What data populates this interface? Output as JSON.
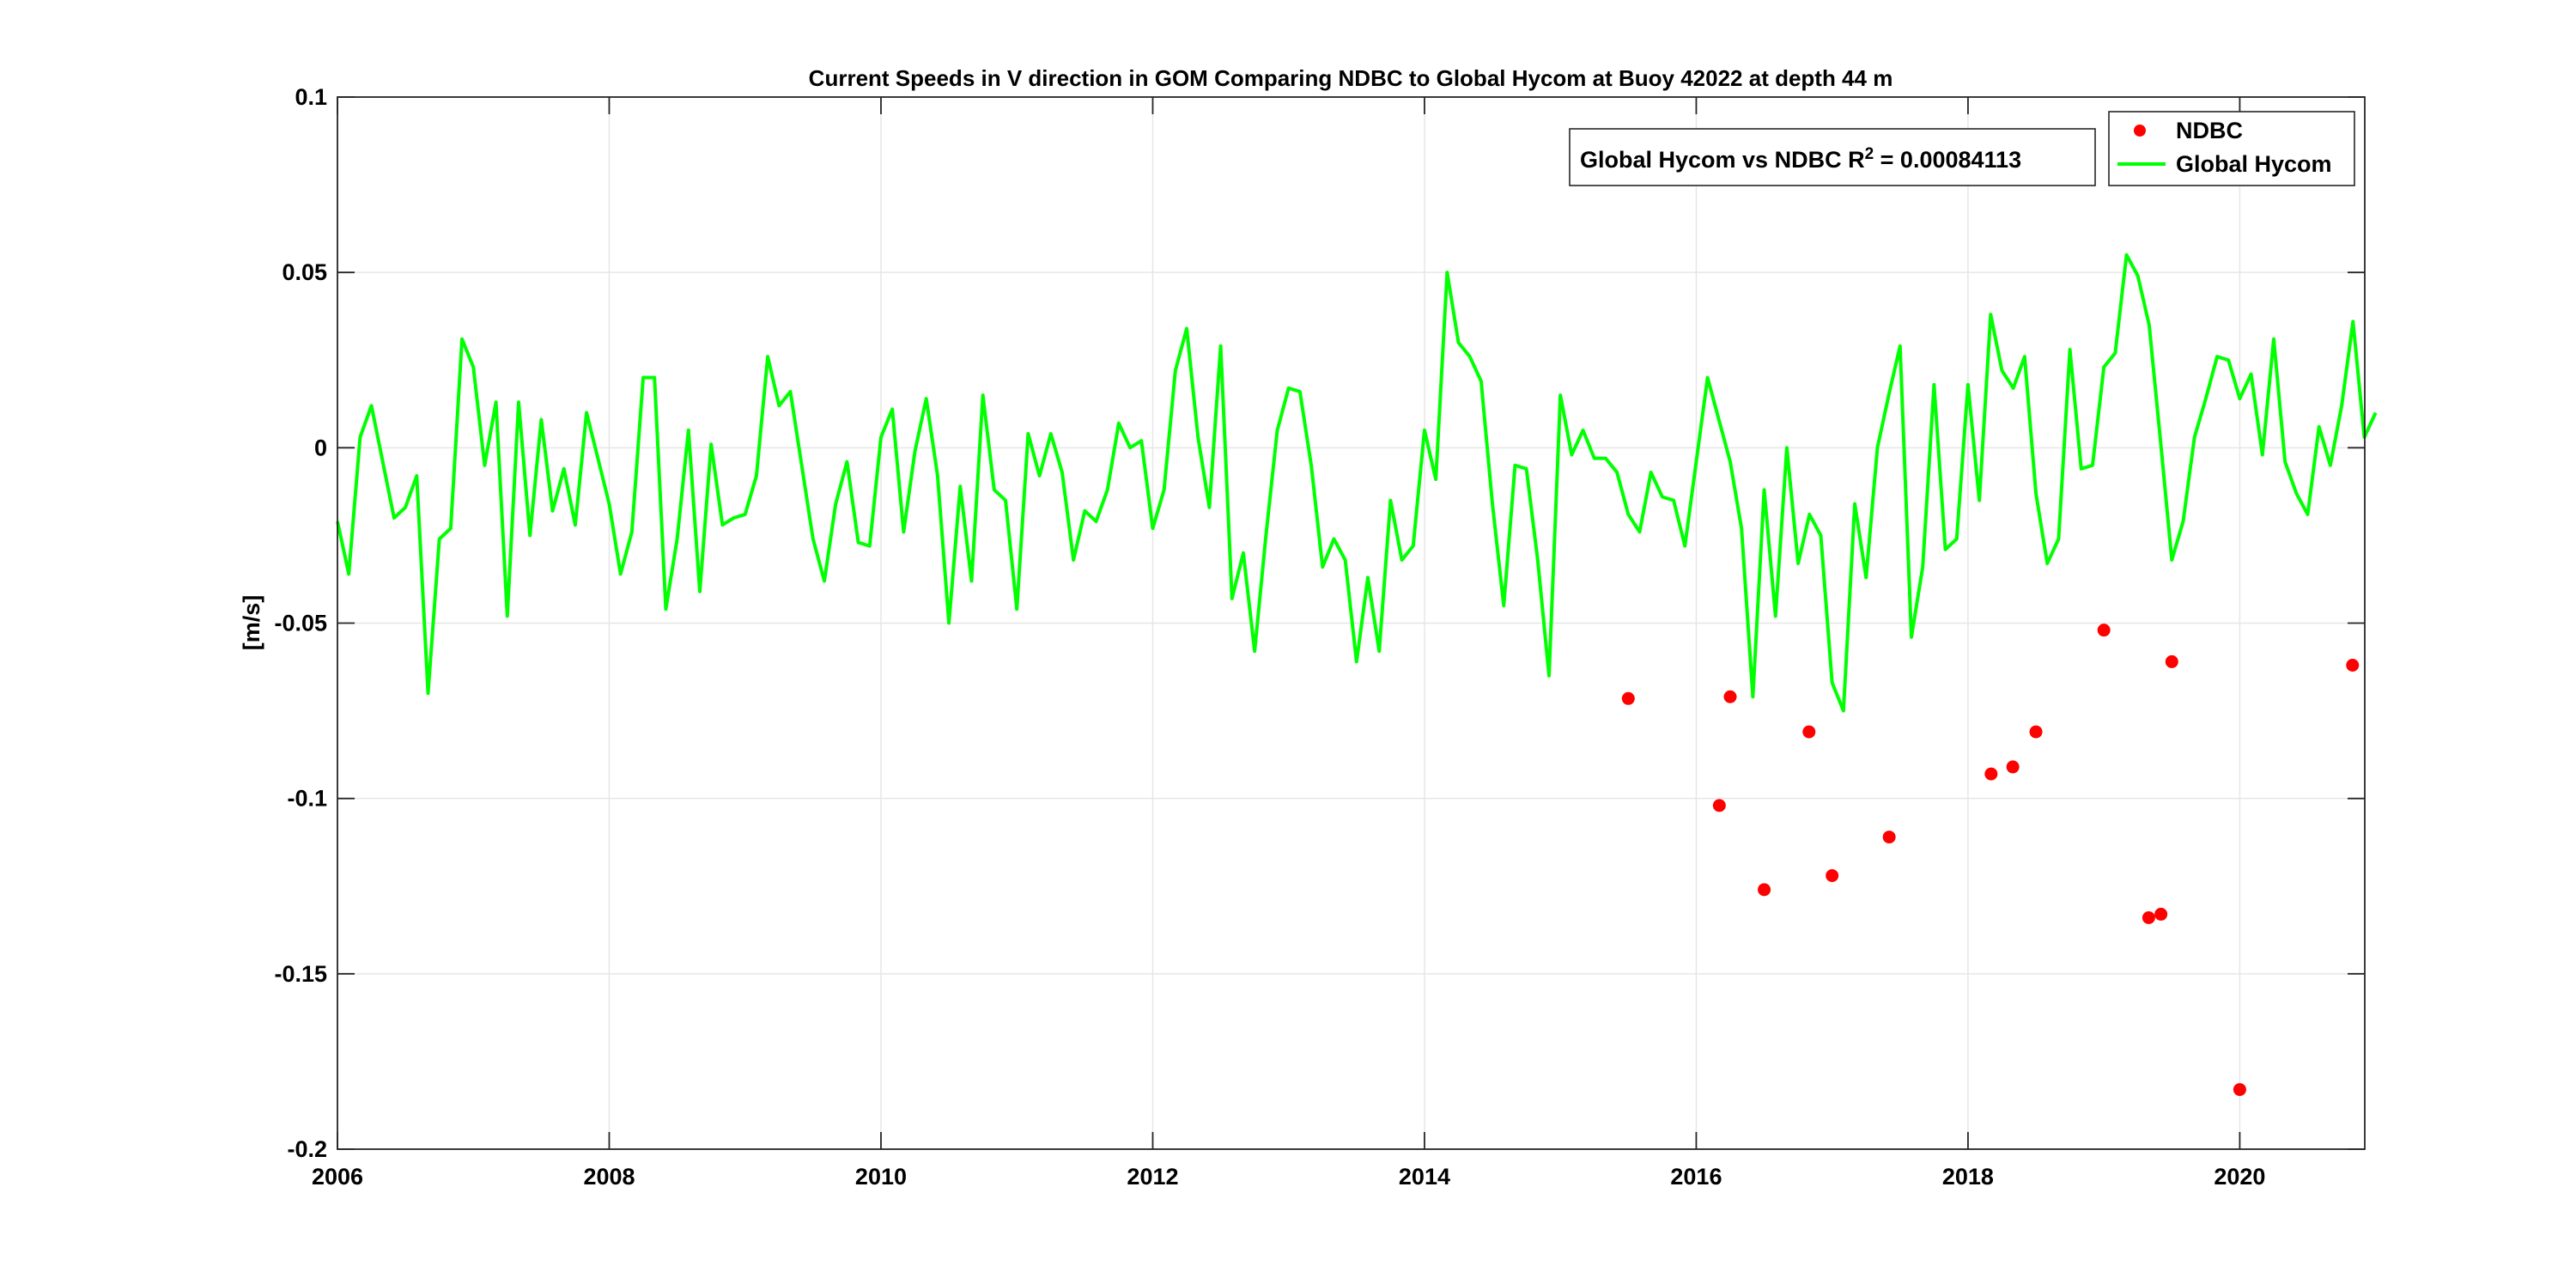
{
  "chart_data": {
    "type": "line",
    "title": "Current Speeds in V direction in GOM Comparing NDBC to Global Hycom at Buoy  42022  at depth  44 m",
    "xlabel": "",
    "ylabel": "[m/s]",
    "xlim": [
      2006,
      2020.92
    ],
    "ylim": [
      -0.2,
      0.1
    ],
    "xticks": [
      2006,
      2008,
      2010,
      2012,
      2014,
      2016,
      2018,
      2020
    ],
    "xtick_labels": [
      "2006",
      "2008",
      "2010",
      "2012",
      "2014",
      "2016",
      "2018",
      "2020"
    ],
    "yticks": [
      -0.2,
      -0.15,
      -0.1,
      -0.05,
      0,
      0.05,
      0.1
    ],
    "ytick_labels": [
      "-0.2",
      "-0.15",
      "-0.1",
      "-0.05",
      "0",
      "0.05",
      "0.1"
    ],
    "grid": true,
    "legend_position": "top-right",
    "annotation": {
      "text": "Global Hycom vs NDBC R",
      "superscript": "2",
      "value_text": " = 0.00084113"
    },
    "series": [
      {
        "name": "NDBC",
        "kind": "scatter",
        "color": "#ff0000",
        "x": [
          2015.5,
          2016.17,
          2016.25,
          2016.5,
          2016.83,
          2017.0,
          2017.42,
          2018.17,
          2018.33,
          2018.5,
          2019.0,
          2019.33,
          2019.42,
          2019.5,
          2020.0,
          2020.83
        ],
        "y": [
          -0.0715,
          -0.102,
          -0.071,
          -0.126,
          -0.081,
          -0.122,
          -0.111,
          -0.093,
          -0.091,
          -0.081,
          -0.052,
          -0.134,
          -0.133,
          -0.061,
          -0.183,
          -0.062
        ]
      },
      {
        "name": "Global Hycom",
        "kind": "line",
        "color": "#00ff00",
        "start_year": 2006,
        "step_months": 1,
        "y": [
          -0.021,
          -0.036,
          0.003,
          0.012,
          -0.004,
          -0.02,
          -0.017,
          -0.008,
          -0.07,
          -0.026,
          -0.023,
          0.031,
          0.023,
          -0.005,
          0.013,
          -0.048,
          0.013,
          -0.025,
          0.008,
          -0.018,
          -0.006,
          -0.022,
          0.01,
          -0.003,
          -0.016,
          -0.036,
          -0.024,
          0.02,
          0.02,
          -0.046,
          -0.026,
          0.005,
          -0.041,
          0.001,
          -0.022,
          -0.02,
          -0.019,
          -0.008,
          0.026,
          0.012,
          0.016,
          -0.005,
          -0.026,
          -0.038,
          -0.016,
          -0.004,
          -0.027,
          -0.028,
          0.003,
          0.011,
          -0.024,
          -0.001,
          0.014,
          -0.008,
          -0.05,
          -0.011,
          -0.038,
          0.015,
          -0.012,
          -0.015,
          -0.046,
          0.004,
          -0.008,
          0.004,
          -0.007,
          -0.032,
          -0.018,
          -0.021,
          -0.012,
          0.007,
          0.0,
          0.002,
          -0.023,
          -0.012,
          0.022,
          0.034,
          0.003,
          -0.017,
          0.029,
          -0.043,
          -0.03,
          -0.058,
          -0.025,
          0.005,
          0.017,
          0.016,
          -0.005,
          -0.034,
          -0.026,
          -0.032,
          -0.061,
          -0.037,
          -0.058,
          -0.015,
          -0.032,
          -0.028,
          0.005,
          -0.009,
          0.05,
          0.03,
          0.026,
          0.019,
          -0.016,
          -0.045,
          -0.005,
          -0.006,
          -0.032,
          -0.065,
          0.015,
          -0.002,
          0.005,
          -0.003,
          -0.003,
          -0.007,
          -0.019,
          -0.024,
          -0.007,
          -0.014,
          -0.015,
          -0.028,
          -0.004,
          0.02,
          0.008,
          -0.004,
          -0.023,
          -0.071,
          -0.012,
          -0.048,
          0.0,
          -0.033,
          -0.019,
          -0.025,
          -0.067,
          -0.075,
          -0.016,
          -0.037,
          0.0,
          0.015,
          0.029,
          -0.054,
          -0.034,
          0.018,
          -0.029,
          -0.026,
          0.018,
          -0.015,
          0.038,
          0.022,
          0.017,
          0.026,
          -0.013,
          -0.033,
          -0.026,
          0.028,
          -0.006,
          -0.005,
          0.023,
          0.027,
          0.055,
          0.049,
          0.035,
          0.002,
          -0.032,
          -0.021,
          0.003,
          0.014,
          0.026,
          0.025,
          0.014,
          0.021,
          -0.002,
          0.031,
          -0.004,
          -0.013,
          -0.019,
          0.006,
          -0.005,
          0.012,
          0.036,
          0.003,
          0.01
        ]
      }
    ]
  }
}
